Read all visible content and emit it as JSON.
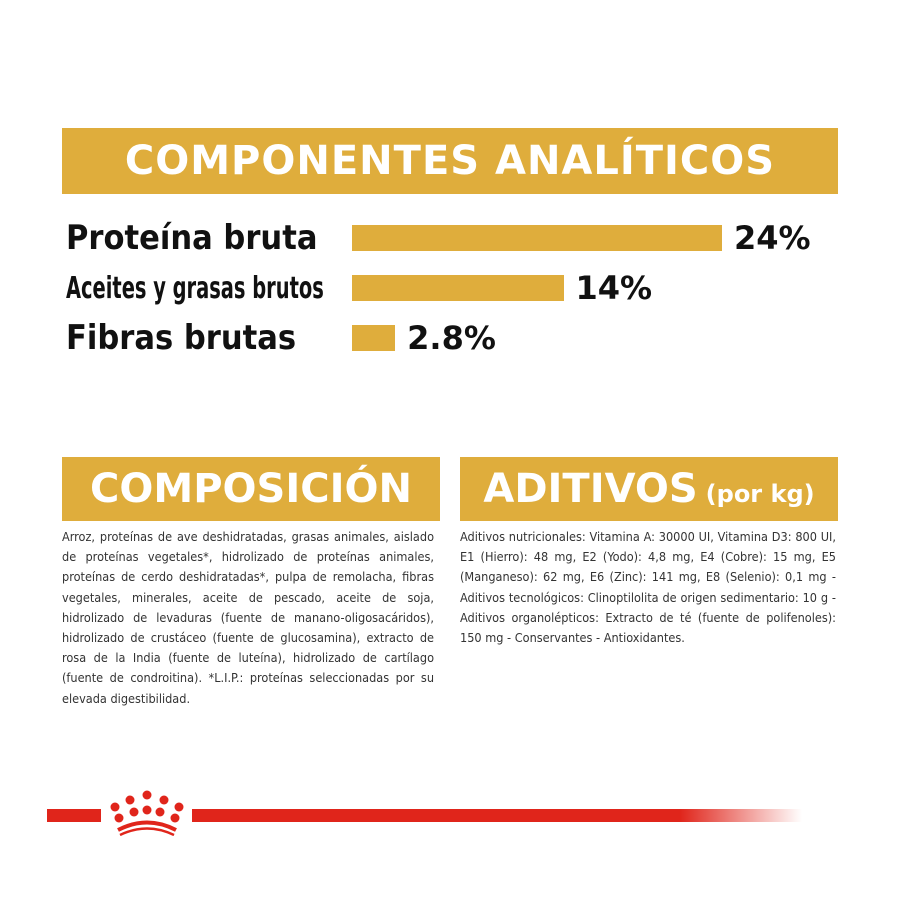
{
  "analytics": {
    "title": "COMPONENTES ANALÍTICOS",
    "items": [
      {
        "label": "Proteína bruta",
        "value": 24,
        "value_label": "24%"
      },
      {
        "label": "Aceites y grasas brutos",
        "value": 14,
        "value_label": "14%"
      },
      {
        "label": "Fibras brutas",
        "value": 2.8,
        "value_label": "2.8%"
      }
    ]
  },
  "composition": {
    "title": "COMPOSICIÓN",
    "text": "Arroz, proteínas de ave deshidratadas, grasas animales, aislado de proteínas vegetales*, hidrolizado de proteínas animales, proteínas de cerdo deshidratadas*, pulpa de remolacha, fibras vegetales, minerales, aceite de pescado, aceite de soja, hidrolizado de levaduras (fuente de manano-oligosacáridos), hidrolizado de crustáceo (fuente de glucosamina), extracto de rosa de la India (fuente de luteína), hidrolizado de cartílago (fuente de condroitina). *L.I.P.: proteínas seleccionadas por su elevada digestibilidad."
  },
  "additives": {
    "title": "ADITIVOS",
    "unit": "(por kg)",
    "text": "Aditivos nutricionales: Vitamina A: 30000 UI, Vitamina D3: 800 UI, E1 (Hierro): 48 mg, E2 (Yodo): 4,8 mg, E4 (Cobre): 15 mg, E5 (Manganeso): 62 mg, E6 (Zinc): 141 mg, E8 (Selenio): 0,1 mg - Aditivos tecnológicos: Clinoptilolita de origen sedimentario: 10 g - Aditivos organolépticos: Extracto de té (fuente de polifenoles): 150 mg - Conservantes - Antioxidantes."
  },
  "colors": {
    "accent": "#dfad3c",
    "brand_red": "#e0251b"
  },
  "logo": {
    "icon": "royal-canin-crown-icon"
  }
}
